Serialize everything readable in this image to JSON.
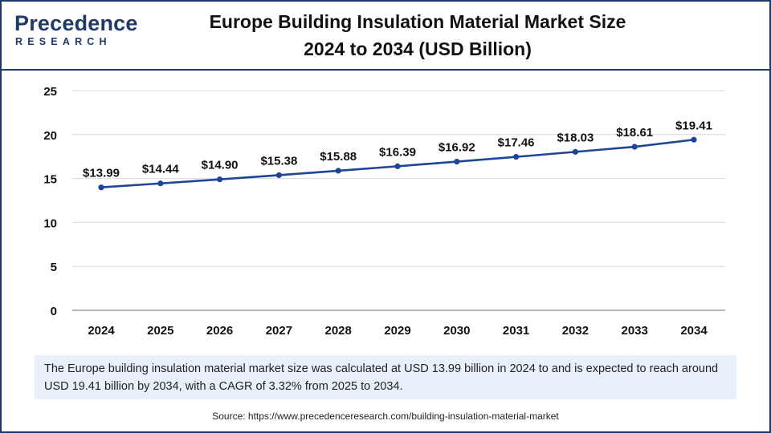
{
  "header": {
    "logo_main": "Precedence",
    "logo_sub": "RESEARCH",
    "title_line1": "Europe Building Insulation Material Market Size",
    "title_line2": "2024 to 2034 (USD Billion)"
  },
  "colors": {
    "line": "#1f4596",
    "marker": "#1f4596",
    "grid": "#d9d9d9",
    "axis": "#8c8c8c",
    "text": "#111111",
    "brand": "#1f3a68",
    "info_bg": "#e8f0fa"
  },
  "chart_data": {
    "type": "line",
    "title": "Europe Building Insulation Material Market Size 2024 to 2034 (USD Billion)",
    "categories": [
      "2024",
      "2025",
      "2026",
      "2027",
      "2028",
      "2029",
      "2030",
      "2031",
      "2032",
      "2033",
      "2034"
    ],
    "series": [
      {
        "name": "Market Size (USD Billion)",
        "values": [
          13.99,
          14.44,
          14.9,
          15.38,
          15.88,
          16.39,
          16.92,
          17.46,
          18.03,
          18.61,
          19.41
        ],
        "labels": [
          "$13.99",
          "$14.44",
          "$14.90",
          "$15.38",
          "$15.88",
          "$16.39",
          "$16.92",
          "$17.46",
          "$18.03",
          "$18.61",
          "$19.41"
        ]
      }
    ],
    "ylim": [
      0,
      25
    ],
    "yticks": [
      0,
      5,
      10,
      15,
      20,
      25
    ],
    "xlabel": "",
    "ylabel": "",
    "grid": true,
    "legend": "none"
  },
  "info_text": "The Europe building insulation material market size was calculated at USD 13.99 billion in 2024 to and is expected to reach around USD 19.41 billion by 2034, with a CAGR of 3.32% from 2025 to 2034.",
  "source_text": "Source: https://www.precedenceresearch.com/building-insulation-material-market"
}
